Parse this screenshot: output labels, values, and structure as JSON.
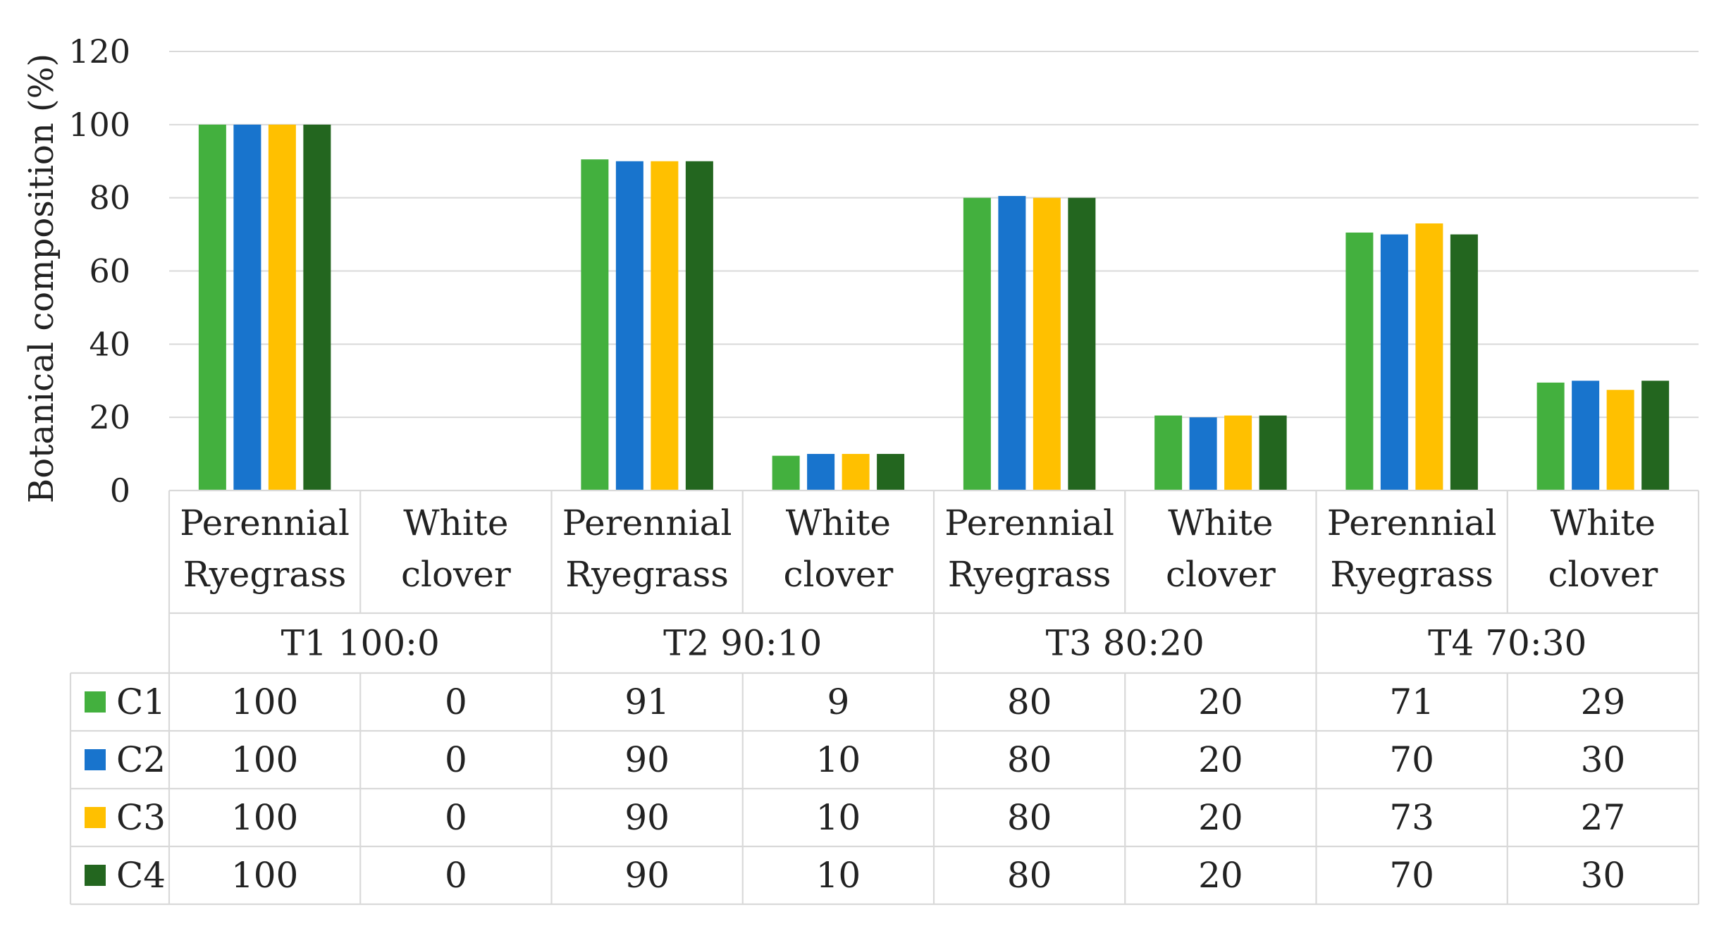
{
  "chart_data": {
    "type": "bar",
    "ylabel": "Botanical composition (%)",
    "ylim": [
      0,
      120
    ],
    "yticks": [
      0,
      20,
      40,
      60,
      80,
      100,
      120
    ],
    "grid": true,
    "legend_placement": "data-table-left",
    "groups": [
      {
        "label": "T1 100:0",
        "categories": [
          {
            "line1": "Perennial",
            "line2": "Ryegrass"
          },
          {
            "line1": "White",
            "line2": "clover"
          }
        ]
      },
      {
        "label": "T2 90:10",
        "categories": [
          {
            "line1": "Perennial",
            "line2": "Ryegrass"
          },
          {
            "line1": "White",
            "line2": "clover"
          }
        ]
      },
      {
        "label": "T3 80:20",
        "categories": [
          {
            "line1": "Perennial",
            "line2": "Ryegrass"
          },
          {
            "line1": "White",
            "line2": "clover"
          }
        ]
      },
      {
        "label": "T4 70:30",
        "categories": [
          {
            "line1": "Perennial",
            "line2": "Ryegrass"
          },
          {
            "line1": "White",
            "line2": "clover"
          }
        ]
      }
    ],
    "series": [
      {
        "name": "C1",
        "color": "#43b03e",
        "values": [
          100,
          0,
          91,
          9,
          80,
          20,
          71,
          29
        ],
        "bar_values": [
          100,
          0,
          90.5,
          9.5,
          80,
          20.5,
          70.5,
          29.5
        ]
      },
      {
        "name": "C2",
        "color": "#1874cd",
        "values": [
          100,
          0,
          90,
          10,
          80,
          20,
          70,
          30
        ],
        "bar_values": [
          100,
          0,
          90,
          10,
          80.5,
          20,
          70,
          30
        ]
      },
      {
        "name": "C3",
        "color": "#ffc000",
        "values": [
          100,
          0,
          90,
          10,
          80,
          20,
          73,
          27
        ],
        "bar_values": [
          100,
          0,
          90,
          10,
          80,
          20.5,
          73,
          27.5
        ]
      },
      {
        "name": "C4",
        "color": "#23661f",
        "values": [
          100,
          0,
          90,
          10,
          80,
          20,
          70,
          30
        ],
        "bar_values": [
          100,
          0,
          90,
          10,
          80,
          20.5,
          70,
          30
        ]
      }
    ]
  }
}
